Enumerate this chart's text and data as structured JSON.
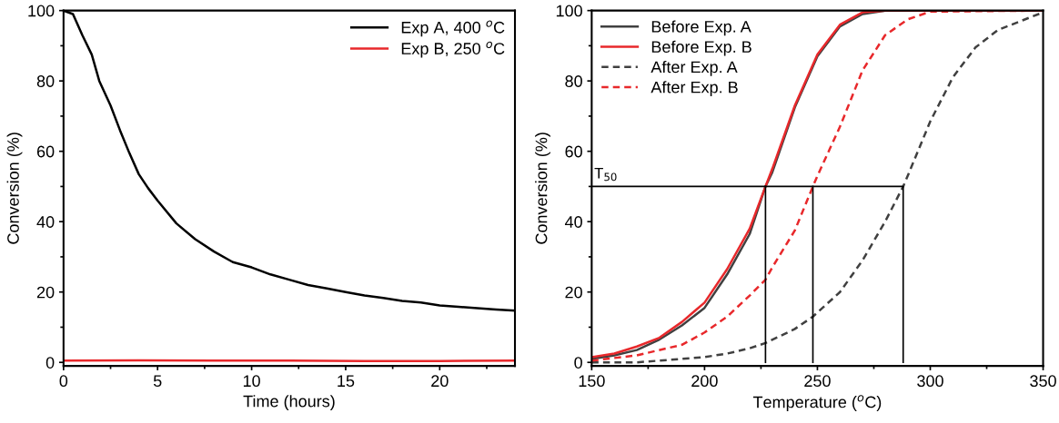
{
  "chart_data": [
    {
      "type": "line",
      "xlabel": "Time (hours)",
      "ylabel": "Conversion (%)",
      "xlim": [
        0,
        24
      ],
      "ylim": [
        -1,
        100
      ],
      "xticks": [
        0,
        5,
        10,
        15,
        20
      ],
      "yticks": [
        0,
        20,
        40,
        60,
        80,
        100
      ],
      "legend": "top right",
      "grid": false,
      "line_style": "solid",
      "series": [
        {
          "name": "Exp A, 400 $^{o}$C",
          "color": "#000000",
          "x": [
            0,
            0.5,
            1,
            1.5,
            1.9,
            2.5,
            3,
            3.5,
            4,
            4.5,
            5,
            6,
            7,
            8,
            9,
            10,
            11,
            12,
            13,
            14,
            15,
            16,
            17,
            18,
            19,
            20,
            21,
            22,
            23,
            24
          ],
          "values": [
            100,
            99,
            93,
            87.5,
            80,
            73,
            66,
            59.5,
            53.5,
            49.5,
            46,
            39.5,
            35,
            31.5,
            28.5,
            27,
            25,
            23.5,
            22,
            21,
            20,
            19,
            18.3,
            17.5,
            17,
            16.2,
            15.8,
            15.4,
            15,
            14.7
          ]
        },
        {
          "name": "Exp B, 250 $^{o}$C",
          "color": "#e8282b",
          "x": [
            0,
            4,
            8,
            12,
            16,
            20,
            24
          ],
          "values": [
            0.5,
            0.6,
            0.5,
            0.5,
            0.4,
            0.4,
            0.5
          ]
        }
      ]
    },
    {
      "type": "line",
      "xlabel": "Temperature ($^{o}$C)",
      "ylabel": "Conversion (%)",
      "xlim": [
        150,
        350
      ],
      "ylim": [
        -1,
        100
      ],
      "xticks": [
        150,
        200,
        250,
        300,
        350
      ],
      "yticks": [
        0,
        20,
        40,
        60,
        80,
        100
      ],
      "legend": "top left",
      "grid": false,
      "annotations": [
        {
          "text": "T$_{50}$",
          "x": 150,
          "y": 50
        }
      ],
      "series": [
        {
          "name": "Before Exp. A",
          "color": "#404040",
          "line_style": "solid",
          "x": [
            150,
            160,
            170,
            180,
            190,
            200,
            210,
            220,
            227,
            230,
            240,
            250,
            260,
            270,
            280,
            350
          ],
          "values": [
            1,
            2,
            3.5,
            6.5,
            10.5,
            15.5,
            25,
            36.5,
            50,
            54,
            72.5,
            87,
            95.5,
            99,
            100,
            100
          ]
        },
        {
          "name": "Before Exp. B",
          "color": "#e8282b",
          "line_style": "solid",
          "x": [
            150,
            160,
            170,
            180,
            190,
            200,
            210,
            220,
            227,
            230,
            240,
            250,
            260,
            270,
            280,
            350
          ],
          "values": [
            1.5,
            2.5,
            4.5,
            7,
            11.5,
            17,
            26.5,
            38,
            50,
            55,
            73,
            87.5,
            96,
            99.5,
            100,
            100
          ]
        },
        {
          "name": "After Exp. A",
          "color": "#404040",
          "line_style": "dashed",
          "x": [
            150,
            170,
            190,
            200,
            210,
            220,
            227,
            240,
            248,
            260,
            270,
            280,
            288,
            290,
            300,
            310,
            320,
            330,
            340,
            350
          ],
          "values": [
            0,
            0,
            1,
            1.5,
            2.5,
            4,
            5.5,
            9.5,
            13,
            20,
            29,
            40,
            50,
            53,
            68.5,
            81,
            89.5,
            94.5,
            97,
            99.5
          ]
        },
        {
          "name": "After Exp. B",
          "color": "#e8282b",
          "line_style": "dashed",
          "x": [
            150,
            170,
            190,
            200,
            210,
            220,
            227,
            230,
            240,
            248,
            250,
            260,
            270,
            280,
            290,
            300,
            350
          ],
          "values": [
            0.5,
            2,
            5,
            8.5,
            13,
            19,
            23.5,
            27,
            37.5,
            50,
            53,
            67,
            83,
            93,
            97.5,
            99.7,
            100
          ]
        },
        {
          "color": "#000000",
          "line_style": "solid",
          "x": [
            150,
            288,
            288
          ],
          "values": [
            50,
            50,
            0
          ]
        },
        {
          "color": "#000000",
          "line_style": "solid",
          "x": [
            227,
            227
          ],
          "values": [
            0,
            50
          ]
        },
        {
          "color": "#000000",
          "line_style": "solid",
          "x": [
            248,
            248
          ],
          "values": [
            0,
            50
          ]
        }
      ]
    }
  ]
}
